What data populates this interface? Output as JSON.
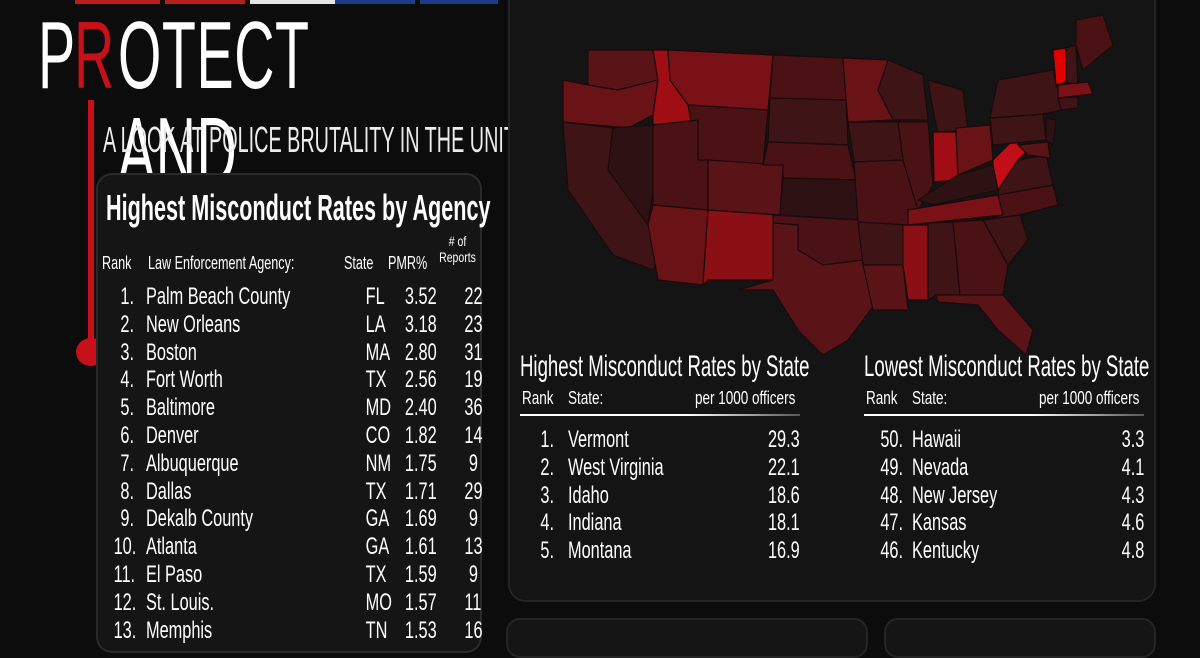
{
  "header": {
    "title_prefix": "P",
    "title_r": "R",
    "title_rest": "OTECT AND SERVE?",
    "subtitle": "A LOOK AT POLICE BRUTALITY IN THE UNITED STATES"
  },
  "agency_table": {
    "title": "Highest Misconduct Rates by Agency",
    "headers": {
      "rank": "Rank",
      "agency": "Law Enforcement Agency:",
      "state": "State",
      "pmr": "PMR%",
      "reports": "# of Reports"
    },
    "rows": [
      {
        "rank": "1.",
        "agency": "Palm Beach County",
        "state": "FL",
        "pmr": "3.52",
        "reports": "22"
      },
      {
        "rank": "2.",
        "agency": "New Orleans",
        "state": "LA",
        "pmr": "3.18",
        "reports": "23"
      },
      {
        "rank": "3.",
        "agency": "Boston",
        "state": "MA",
        "pmr": "2.80",
        "reports": "31"
      },
      {
        "rank": "4.",
        "agency": "Fort Worth",
        "state": "TX",
        "pmr": "2.56",
        "reports": "19"
      },
      {
        "rank": "5.",
        "agency": "Baltimore",
        "state": "MD",
        "pmr": "2.40",
        "reports": "36"
      },
      {
        "rank": "6.",
        "agency": "Denver",
        "state": "CO",
        "pmr": "1.82",
        "reports": "14"
      },
      {
        "rank": "7.",
        "agency": "Albuquerque",
        "state": "NM",
        "pmr": "1.75",
        "reports": "9"
      },
      {
        "rank": "8.",
        "agency": "Dallas",
        "state": "TX",
        "pmr": "1.71",
        "reports": "29"
      },
      {
        "rank": "9.",
        "agency": "Dekalb County",
        "state": "GA",
        "pmr": "1.69",
        "reports": "9"
      },
      {
        "rank": "10.",
        "agency": "Atlanta",
        "state": "GA",
        "pmr": "1.61",
        "reports": "13"
      },
      {
        "rank": "11.",
        "agency": "El Paso",
        "state": "TX",
        "pmr": "1.59",
        "reports": "9"
      },
      {
        "rank": "12.",
        "agency": "St. Louis.",
        "state": "MO",
        "pmr": "1.57",
        "reports": "11"
      },
      {
        "rank": "13.",
        "agency": "Memphis",
        "state": "TN",
        "pmr": "1.53",
        "reports": "16"
      }
    ]
  },
  "highest_states": {
    "title": "Highest Misconduct Rates by State",
    "headers": {
      "rank": "Rank",
      "state": "State:",
      "value": "per 1000 officers"
    },
    "rows": [
      {
        "rank": "1.",
        "state": "Vermont",
        "value": "29.3"
      },
      {
        "rank": "2.",
        "state": "West Virginia",
        "value": "22.1"
      },
      {
        "rank": "3.",
        "state": "Idaho",
        "value": "18.6"
      },
      {
        "rank": "4.",
        "state": "Indiana",
        "value": "18.1"
      },
      {
        "rank": "5.",
        "state": "Montana",
        "value": "16.9"
      }
    ]
  },
  "lowest_states": {
    "title": "Lowest Misconduct Rates by State",
    "headers": {
      "rank": "Rank",
      "state": "State:",
      "value": "per 1000 officers"
    },
    "rows": [
      {
        "rank": "50.",
        "state": "Hawaii",
        "value": "3.3"
      },
      {
        "rank": "49.",
        "state": "Nevada",
        "value": "4.1"
      },
      {
        "rank": "48.",
        "state": "New Jersey",
        "value": "4.3"
      },
      {
        "rank": "47.",
        "state": "Kansas",
        "value": "4.6"
      },
      {
        "rank": "46.",
        "state": "Kentucky",
        "value": "4.8"
      }
    ]
  },
  "colors": {
    "accent_red": "#c8101a",
    "map_dark": "#3a1416",
    "map_medium": "#6b1216",
    "map_bright": "#a10d14",
    "map_max": "#e00000",
    "background": "#0c0c0c"
  }
}
